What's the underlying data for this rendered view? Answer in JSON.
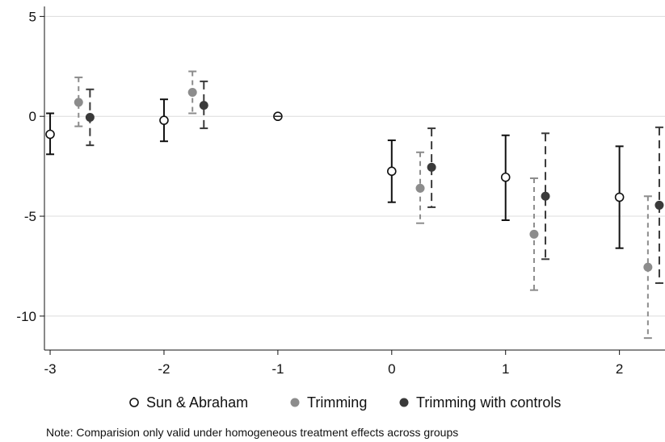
{
  "chart_data": {
    "type": "scatter",
    "xlim": [
      -3.05,
      2.4
    ],
    "ylim": [
      -11.7,
      5.5
    ],
    "x_ticks": [
      -3,
      -2,
      -1,
      0,
      1,
      2
    ],
    "y_ticks": [
      5,
      0,
      -5,
      -10
    ],
    "grid": true,
    "legend_position": "bottom",
    "note": "Note: Comparision only valid under homogeneous treatment effects across groups",
    "series": [
      {
        "name": "Sun & Abraham",
        "style": "hollow",
        "color": "#111111",
        "dash": "",
        "offset": 0,
        "points": [
          {
            "x": -3,
            "y": -0.9,
            "lo": -1.9,
            "hi": 0.15
          },
          {
            "x": -2,
            "y": -0.2,
            "lo": -1.25,
            "hi": 0.85
          },
          {
            "x": -1,
            "y": 0.0,
            "lo": null,
            "hi": null
          },
          {
            "x": 0,
            "y": -2.75,
            "lo": -4.3,
            "hi": -1.2
          },
          {
            "x": 1,
            "y": -3.05,
            "lo": -5.2,
            "hi": -0.95
          },
          {
            "x": 2,
            "y": -4.05,
            "lo": -6.6,
            "hi": -1.5
          }
        ]
      },
      {
        "name": "Trimming",
        "style": "solid",
        "color": "#8c8c8c",
        "dash": "6,5",
        "offset": 0.25,
        "points": [
          {
            "x": -3,
            "y": 0.7,
            "lo": -0.5,
            "hi": 1.95
          },
          {
            "x": -2,
            "y": 1.2,
            "lo": 0.15,
            "hi": 2.25
          },
          {
            "x": 0,
            "y": -3.6,
            "lo": -5.35,
            "hi": -1.8
          },
          {
            "x": 1,
            "y": -5.9,
            "lo": -8.7,
            "hi": -3.1
          },
          {
            "x": 2,
            "y": -7.55,
            "lo": -11.1,
            "hi": -4.0
          }
        ]
      },
      {
        "name": "Trimming with controls",
        "style": "solid",
        "color": "#3a3a3a",
        "dash": "10,6",
        "offset": 0.35,
        "points": [
          {
            "x": -3,
            "y": -0.05,
            "lo": -1.45,
            "hi": 1.35
          },
          {
            "x": -2,
            "y": 0.55,
            "lo": -0.6,
            "hi": 1.75
          },
          {
            "x": 0,
            "y": -2.55,
            "lo": -4.55,
            "hi": -0.6
          },
          {
            "x": 1,
            "y": -4.0,
            "lo": -7.15,
            "hi": -0.85
          },
          {
            "x": 2,
            "y": -4.45,
            "lo": -8.35,
            "hi": -0.55
          }
        ]
      }
    ]
  }
}
